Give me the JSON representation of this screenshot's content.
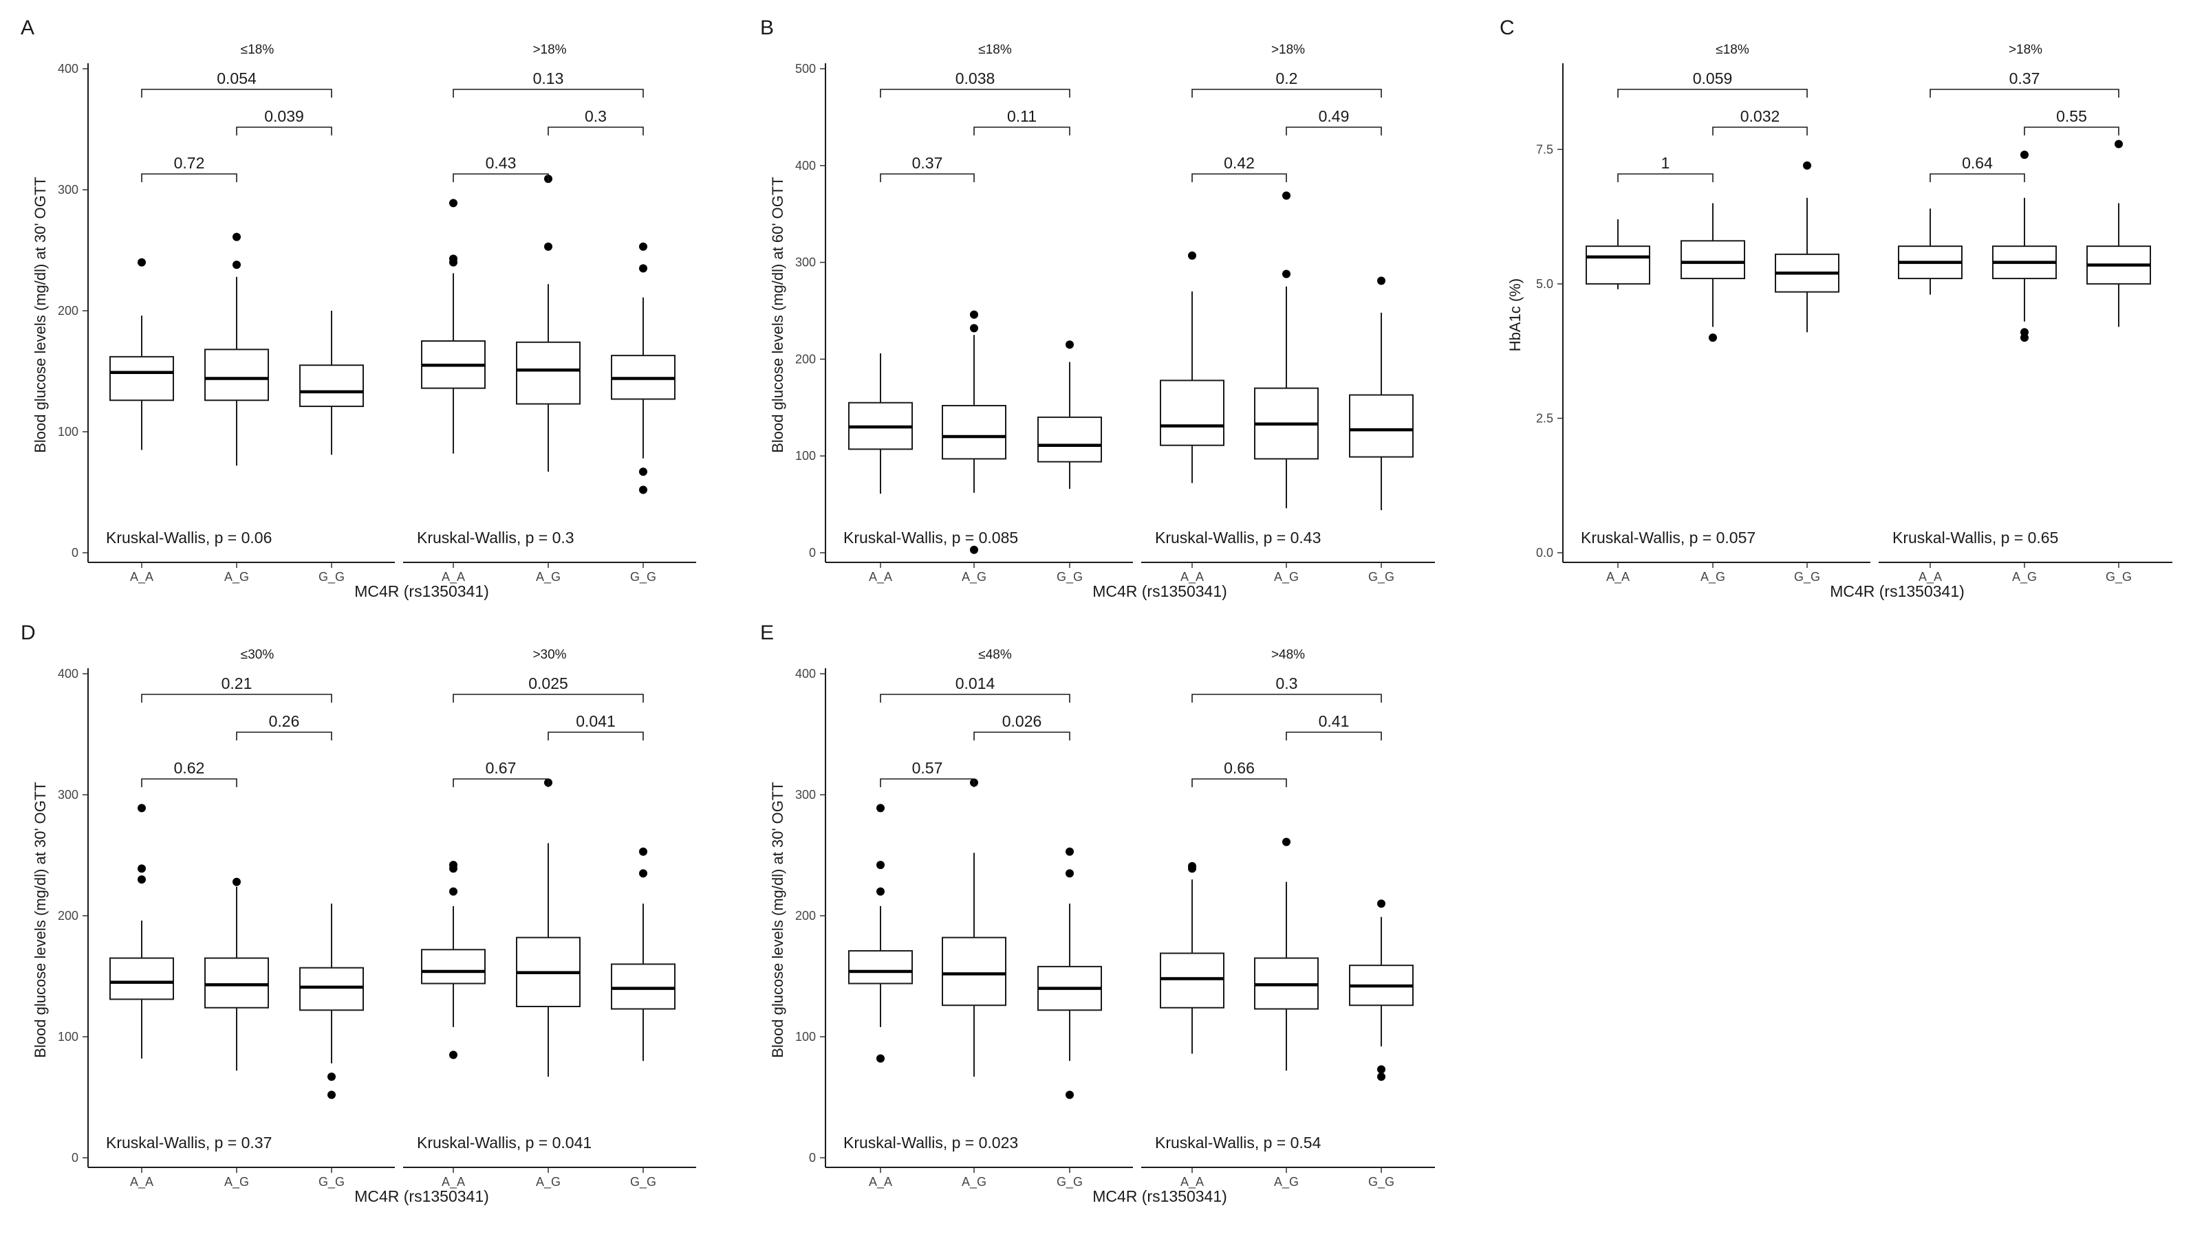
{
  "xlabel": "MC4R (rs1350341)",
  "genotypes": [
    "A_A",
    "A_G",
    "G_G"
  ],
  "panels": [
    {
      "id": "A",
      "ylabel": "Blood glucose levels (mg/dl) at 30' OGTT",
      "ylim": [
        0,
        400
      ],
      "yticks": [
        0,
        100,
        200,
        300,
        400
      ],
      "groups": [
        {
          "strip": "≤18%",
          "kruskal": "Kruskal-Wallis, p = 0.06",
          "comparisons": {
            "ag_vs_aa": "0.72",
            "gg_vs_ag": "0.039",
            "gg_vs_aa": "0.054"
          },
          "boxes": [
            {
              "q1": 126,
              "median": 149,
              "q3": 162,
              "low": 85,
              "high": 196,
              "outliers": [
                240
              ]
            },
            {
              "q1": 126,
              "median": 144,
              "q3": 168,
              "low": 72,
              "high": 228,
              "outliers": [
                238,
                261
              ]
            },
            {
              "q1": 121,
              "median": 133,
              "q3": 155,
              "low": 81,
              "high": 200,
              "outliers": []
            }
          ]
        },
        {
          "strip": ">18%",
          "kruskal": "Kruskal-Wallis, p = 0.3",
          "comparisons": {
            "ag_vs_aa": "0.43",
            "gg_vs_ag": "0.3",
            "gg_vs_aa": "0.13"
          },
          "boxes": [
            {
              "q1": 136,
              "median": 155,
              "q3": 175,
              "low": 82,
              "high": 231,
              "outliers": [
                240,
                243,
                289
              ]
            },
            {
              "q1": 123,
              "median": 151,
              "q3": 174,
              "low": 67,
              "high": 222,
              "outliers": [
                253,
                309
              ]
            },
            {
              "q1": 127,
              "median": 144,
              "q3": 163,
              "low": 78,
              "high": 211,
              "outliers": [
                52,
                67,
                235,
                253
              ]
            }
          ]
        }
      ]
    },
    {
      "id": "B",
      "ylabel": "Blood glucose levels (mg/dl) at 60' OGTT",
      "ylim": [
        0,
        500
      ],
      "yticks": [
        0,
        100,
        200,
        300,
        400,
        500
      ],
      "groups": [
        {
          "strip": "≤18%",
          "kruskal": "Kruskal-Wallis, p = 0.085",
          "comparisons": {
            "ag_vs_aa": "0.37",
            "gg_vs_ag": "0.11",
            "gg_vs_aa": "0.038"
          },
          "boxes": [
            {
              "q1": 107,
              "median": 130,
              "q3": 155,
              "low": 61,
              "high": 206,
              "outliers": []
            },
            {
              "q1": 97,
              "median": 120,
              "q3": 152,
              "low": 62,
              "high": 225,
              "outliers": [
                3,
                232,
                246
              ]
            },
            {
              "q1": 94,
              "median": 111,
              "q3": 140,
              "low": 66,
              "high": 197,
              "outliers": [
                215
              ]
            }
          ]
        },
        {
          "strip": ">18%",
          "kruskal": "Kruskal-Wallis, p = 0.43",
          "comparisons": {
            "ag_vs_aa": "0.42",
            "gg_vs_ag": "0.49",
            "gg_vs_aa": "0.2"
          },
          "boxes": [
            {
              "q1": 111,
              "median": 131,
              "q3": 178,
              "low": 72,
              "high": 270,
              "outliers": [
                307
              ]
            },
            {
              "q1": 97,
              "median": 133,
              "q3": 170,
              "low": 46,
              "high": 275,
              "outliers": [
                288,
                369
              ]
            },
            {
              "q1": 99,
              "median": 127,
              "q3": 163,
              "low": 44,
              "high": 248,
              "outliers": [
                281
              ]
            }
          ]
        }
      ]
    },
    {
      "id": "C",
      "ylabel": "HbA1c (%)",
      "ylim": [
        0,
        9
      ],
      "yticks": [
        0.0,
        2.5,
        5.0,
        7.5
      ],
      "ytick_labels": [
        "0.0",
        "2.5",
        "5.0",
        "7.5"
      ],
      "groups": [
        {
          "strip": "≤18%",
          "kruskal": "Kruskal-Wallis, p = 0.057",
          "comparisons": {
            "ag_vs_aa": "1",
            "gg_vs_ag": "0.032",
            "gg_vs_aa": "0.059"
          },
          "boxes": [
            {
              "q1": 5.0,
              "median": 5.5,
              "q3": 5.7,
              "low": 4.9,
              "high": 6.2,
              "outliers": []
            },
            {
              "q1": 5.1,
              "median": 5.4,
              "q3": 5.8,
              "low": 4.2,
              "high": 6.5,
              "outliers": [
                4.0
              ]
            },
            {
              "q1": 4.85,
              "median": 5.2,
              "q3": 5.55,
              "low": 4.1,
              "high": 6.6,
              "outliers": [
                7.2
              ]
            }
          ]
        },
        {
          "strip": ">18%",
          "kruskal": "Kruskal-Wallis, p = 0.65",
          "comparisons": {
            "ag_vs_aa": "0.64",
            "gg_vs_ag": "0.55",
            "gg_vs_aa": "0.37"
          },
          "boxes": [
            {
              "q1": 5.1,
              "median": 5.4,
              "q3": 5.7,
              "low": 4.8,
              "high": 6.4,
              "outliers": []
            },
            {
              "q1": 5.1,
              "median": 5.4,
              "q3": 5.7,
              "low": 4.3,
              "high": 6.6,
              "outliers": [
                4.0,
                4.1,
                7.4
              ]
            },
            {
              "q1": 5.0,
              "median": 5.35,
              "q3": 5.7,
              "low": 4.2,
              "high": 6.5,
              "outliers": [
                7.6
              ]
            }
          ]
        }
      ]
    },
    {
      "id": "D",
      "ylabel": "Blood glucose levels (mg/dl) at 30' OGTT",
      "ylim": [
        0,
        400
      ],
      "yticks": [
        0,
        100,
        200,
        300,
        400
      ],
      "groups": [
        {
          "strip": "≤30%",
          "kruskal": "Kruskal-Wallis, p = 0.37",
          "comparisons": {
            "ag_vs_aa": "0.62",
            "gg_vs_ag": "0.26",
            "gg_vs_aa": "0.21"
          },
          "boxes": [
            {
              "q1": 131,
              "median": 145,
              "q3": 165,
              "low": 82,
              "high": 196,
              "outliers": [
                230,
                239,
                289
              ]
            },
            {
              "q1": 124,
              "median": 143,
              "q3": 165,
              "low": 72,
              "high": 224,
              "outliers": [
                228
              ]
            },
            {
              "q1": 122,
              "median": 141,
              "q3": 157,
              "low": 78,
              "high": 210,
              "outliers": [
                52,
                67
              ]
            }
          ]
        },
        {
          "strip": ">30%",
          "kruskal": "Kruskal-Wallis, p = 0.041",
          "comparisons": {
            "ag_vs_aa": "0.67",
            "gg_vs_ag": "0.041",
            "gg_vs_aa": "0.025"
          },
          "boxes": [
            {
              "q1": 144,
              "median": 154,
              "q3": 172,
              "low": 108,
              "high": 208,
              "outliers": [
                85,
                220,
                239,
                242
              ]
            },
            {
              "q1": 125,
              "median": 153,
              "q3": 182,
              "low": 67,
              "high": 260,
              "outliers": [
                310
              ]
            },
            {
              "q1": 123,
              "median": 140,
              "q3": 160,
              "low": 80,
              "high": 210,
              "outliers": [
                235,
                253
              ]
            }
          ]
        }
      ]
    },
    {
      "id": "E",
      "ylabel": "Blood glucose levels (mg/dl) at 30' OGTT",
      "ylim": [
        0,
        400
      ],
      "yticks": [
        0,
        100,
        200,
        300,
        400
      ],
      "groups": [
        {
          "strip": "≤48%",
          "kruskal": "Kruskal-Wallis, p = 0.023",
          "comparisons": {
            "ag_vs_aa": "0.57",
            "gg_vs_ag": "0.026",
            "gg_vs_aa": "0.014"
          },
          "boxes": [
            {
              "q1": 144,
              "median": 154,
              "q3": 171,
              "low": 108,
              "high": 208,
              "outliers": [
                82,
                220,
                242,
                289
              ]
            },
            {
              "q1": 126,
              "median": 152,
              "q3": 182,
              "low": 67,
              "high": 252,
              "outliers": [
                310
              ]
            },
            {
              "q1": 122,
              "median": 140,
              "q3": 158,
              "low": 80,
              "high": 210,
              "outliers": [
                52,
                235,
                253
              ]
            }
          ]
        },
        {
          "strip": ">48%",
          "kruskal": "Kruskal-Wallis, p = 0.54",
          "comparisons": {
            "ag_vs_aa": "0.66",
            "gg_vs_ag": "0.41",
            "gg_vs_aa": "0.3"
          },
          "boxes": [
            {
              "q1": 124,
              "median": 148,
              "q3": 169,
              "low": 86,
              "high": 230,
              "outliers": [
                239,
                241
              ]
            },
            {
              "q1": 123,
              "median": 143,
              "q3": 165,
              "low": 72,
              "high": 228,
              "outliers": [
                261
              ]
            },
            {
              "q1": 126,
              "median": 142,
              "q3": 159,
              "low": 92,
              "high": 199,
              "outliers": [
                67,
                73,
                210
              ]
            }
          ]
        }
      ]
    }
  ],
  "chart_data": {
    "type": "boxplot",
    "xlabel": "MC4R (rs1350341)",
    "categories": [
      "A_A",
      "A_G",
      "G_G"
    ],
    "panel_ids": [
      "A",
      "B",
      "C",
      "D",
      "E"
    ]
  }
}
